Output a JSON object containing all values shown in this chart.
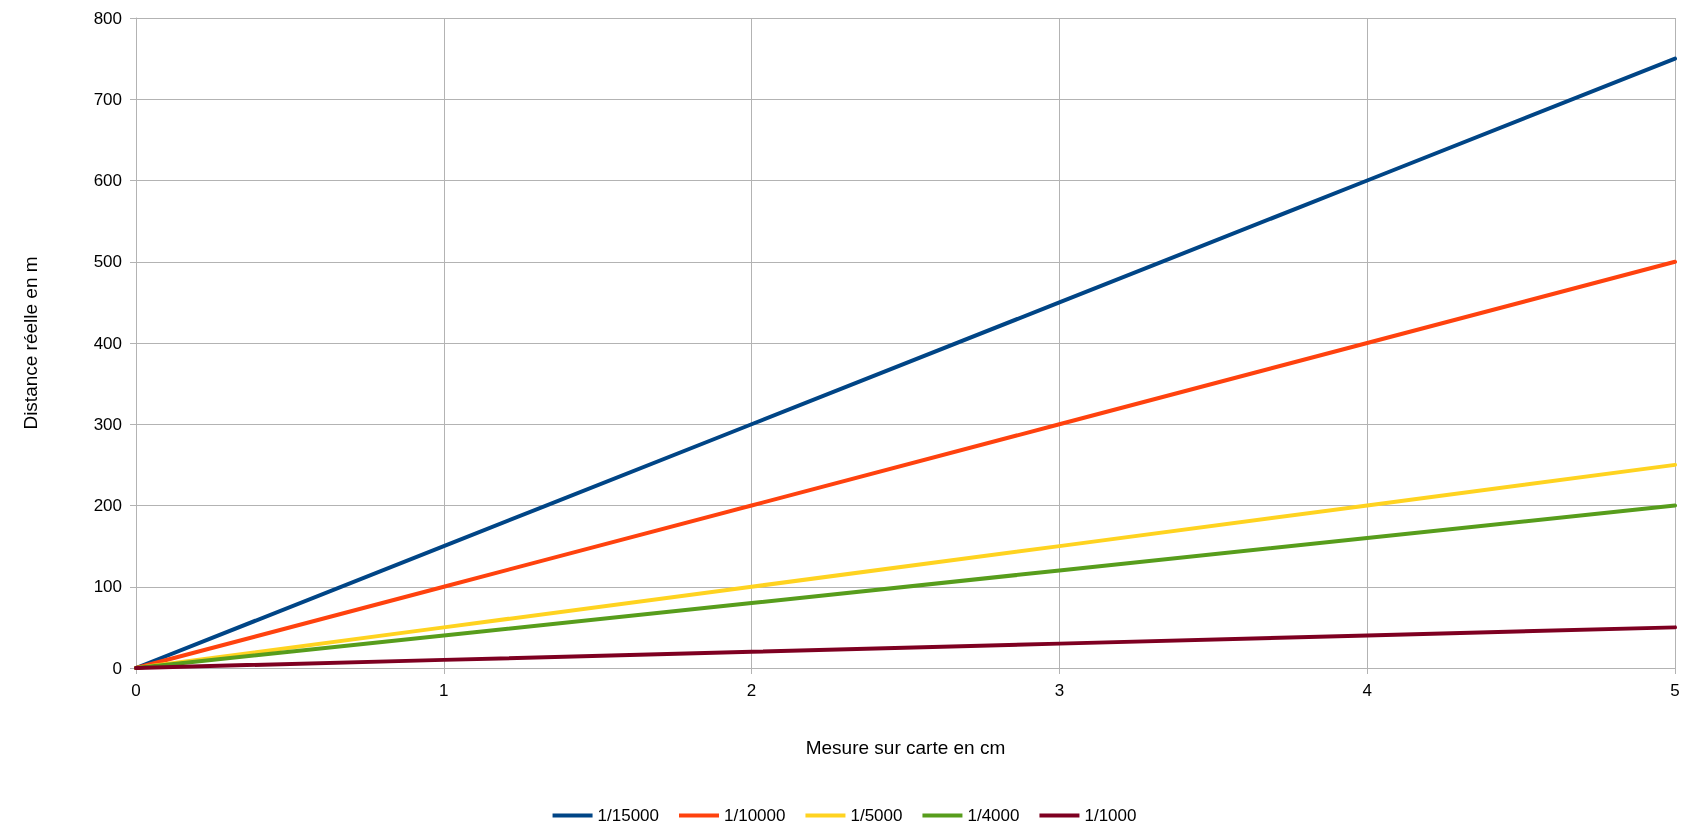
{
  "chart_data": {
    "type": "line",
    "xlabel": "Mesure sur carte en cm",
    "ylabel": "Distance réelle en m",
    "x": [
      0,
      1,
      2,
      3,
      4,
      5
    ],
    "series": [
      {
        "name": "1/15000",
        "color": "#004586",
        "values": [
          0,
          150,
          300,
          450,
          600,
          750
        ]
      },
      {
        "name": "1/10000",
        "color": "#ff420e",
        "values": [
          0,
          100,
          200,
          300,
          400,
          500
        ]
      },
      {
        "name": "1/5000",
        "color": "#ffd320",
        "values": [
          0,
          50,
          100,
          150,
          200,
          250
        ]
      },
      {
        "name": "1/4000",
        "color": "#579d1c",
        "values": [
          0,
          40,
          80,
          120,
          160,
          200
        ]
      },
      {
        "name": "1/1000",
        "color": "#7e0021",
        "values": [
          0,
          10,
          20,
          30,
          40,
          50
        ]
      }
    ],
    "xlim": [
      0,
      5
    ],
    "xticks": [
      0,
      1,
      2,
      3,
      4,
      5
    ],
    "ylim": [
      0,
      800
    ],
    "yticks": [
      0,
      100,
      200,
      300,
      400,
      500,
      600,
      700,
      800
    ],
    "grid": true,
    "legend": "bottom",
    "marker": "none",
    "line_style": "solid"
  }
}
